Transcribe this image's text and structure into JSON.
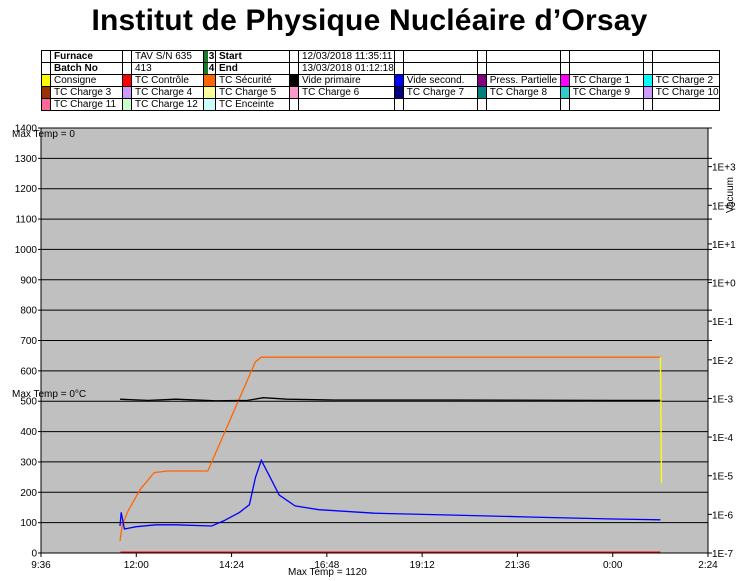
{
  "header": {
    "title": "Institut de Physique Nucléaire d’Orsay"
  },
  "info": {
    "furnace_label": "Furnace",
    "furnace_value": "TAV S/N 635",
    "batch_label": "Batch No",
    "batch_value": "413",
    "start_num": "3",
    "start_label": "Start",
    "start_value": "12/03/2018 11:35:11",
    "end_num": "4",
    "end_label": "End",
    "end_value": "13/03/2018 01:12:18"
  },
  "legend_items": [
    {
      "label": "Consigne",
      "color": "#ffff00"
    },
    {
      "label": "TC Contrôle",
      "color": "#ff0000"
    },
    {
      "label": "TC Sécurité",
      "color": "#ff6600"
    },
    {
      "label": "Vide primaire",
      "color": "#000000"
    },
    {
      "label": "Vide second.",
      "color": "#0000ff"
    },
    {
      "label": "Press. Partielle",
      "color": "#800080"
    },
    {
      "label": "TC Charge 1",
      "color": "#ff00ff"
    },
    {
      "label": "TC Charge 2",
      "color": "#00ffff"
    },
    {
      "label": "TC Charge 3",
      "color": "#993300"
    },
    {
      "label": "TC Charge 4",
      "color": "#cc99ff"
    },
    {
      "label": "TC Charge 5",
      "color": "#ffff99"
    },
    {
      "label": "TC Charge 6",
      "color": "#ff99cc"
    },
    {
      "label": "TC Charge 7",
      "color": "#000080"
    },
    {
      "label": "TC Charge 8",
      "color": "#008080"
    },
    {
      "label": "TC Charge 9",
      "color": "#33cccc"
    },
    {
      "label": "TC Charge 10",
      "color": "#cc99ff"
    },
    {
      "label": "TC Charge 11",
      "color": "#ff6699"
    },
    {
      "label": "TC Charge 12",
      "color": "#ccffcc"
    },
    {
      "label": "TC Enceinte",
      "color": "#ccffff"
    }
  ],
  "annotations": {
    "top": "Max Temp = 0",
    "middle": "Max Temp = 0°C",
    "bottom": "Max Temp = 1120"
  },
  "chart_data": {
    "type": "line",
    "title": "",
    "plot_background": "#c0c0c0",
    "grid": true,
    "x_ticks": [
      "9:36",
      "12:00",
      "14:24",
      "16:48",
      "19:12",
      "21:36",
      "0:00",
      "2:24"
    ],
    "y_left": {
      "ylim": [
        0,
        1400
      ],
      "ticks": [
        "0",
        "100",
        "200",
        "300",
        "400",
        "500",
        "600",
        "700",
        "800",
        "900",
        "1000",
        "1100",
        "1200",
        "1300",
        "1400"
      ]
    },
    "y_right": {
      "label": "Vacuum",
      "ticks": [
        "1E-7",
        "1E-6",
        "1E-5",
        "1E-4",
        "1E-3",
        "1E-2",
        "1E-1",
        "1E+0",
        "1E+1",
        "1E+2",
        "1E+3"
      ]
    },
    "series": [
      {
        "name": "TC Sécurité",
        "color": "#ff6600",
        "axis": "temp",
        "points": [
          [
            11.59,
            40
          ],
          [
            11.65,
            95
          ],
          [
            11.8,
            140
          ],
          [
            12.1,
            210
          ],
          [
            12.45,
            265
          ],
          [
            12.8,
            270
          ],
          [
            13.8,
            270
          ],
          [
            15.0,
            630
          ],
          [
            15.15,
            645
          ],
          [
            15.5,
            645
          ],
          [
            20.0,
            645
          ],
          [
            24.0,
            645
          ],
          [
            25.0,
            645
          ],
          [
            25.2,
            645
          ]
        ]
      },
      {
        "name": "Consigne",
        "color": "#ffff00",
        "axis": "temp",
        "points": [
          [
            25.2,
            645
          ],
          [
            25.23,
            230
          ]
        ]
      },
      {
        "name": "Vide primaire",
        "color": "#000000",
        "axis": "vacuum",
        "points": [
          [
            11.59,
            -3.02
          ],
          [
            12.3,
            -3.05
          ],
          [
            13.0,
            -3.02
          ],
          [
            14.0,
            -3.06
          ],
          [
            14.8,
            -3.05
          ],
          [
            15.2,
            -2.98
          ],
          [
            15.8,
            -3.02
          ],
          [
            17.0,
            -3.04
          ],
          [
            20.0,
            -3.04
          ],
          [
            24.0,
            -3.05
          ],
          [
            25.2,
            -3.05
          ]
        ]
      },
      {
        "name": "Vide second.",
        "color": "#0000ff",
        "axis": "vacuum",
        "points": [
          [
            11.59,
            -6.3
          ],
          [
            11.62,
            -5.95
          ],
          [
            11.7,
            -6.38
          ],
          [
            12.0,
            -6.32
          ],
          [
            12.5,
            -6.27
          ],
          [
            13.0,
            -6.27
          ],
          [
            13.9,
            -6.3
          ],
          [
            14.2,
            -6.17
          ],
          [
            14.6,
            -5.95
          ],
          [
            14.85,
            -5.75
          ],
          [
            15.0,
            -5.05
          ],
          [
            15.15,
            -4.6
          ],
          [
            15.35,
            -5.0
          ],
          [
            15.6,
            -5.5
          ],
          [
            16.0,
            -5.78
          ],
          [
            16.6,
            -5.88
          ],
          [
            18.0,
            -5.97
          ],
          [
            20.0,
            -6.02
          ],
          [
            22.0,
            -6.07
          ],
          [
            24.0,
            -6.12
          ],
          [
            25.2,
            -6.14
          ]
        ]
      }
    ]
  }
}
